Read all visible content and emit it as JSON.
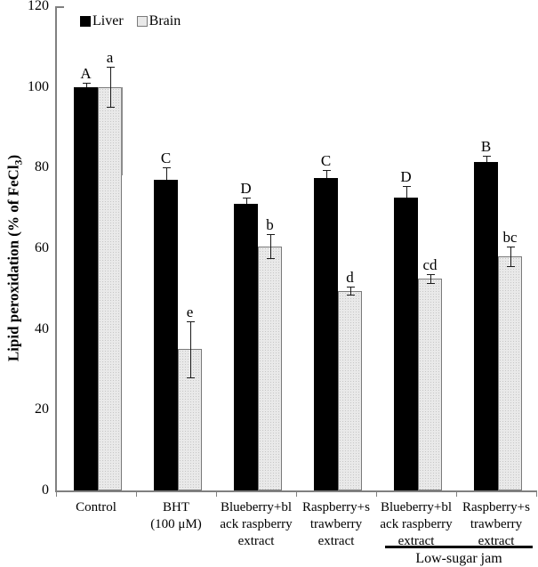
{
  "figure": {
    "kind": "grouped-bar-chart",
    "background": "#ffffff"
  },
  "legend": {
    "items": [
      {
        "label": "Liver",
        "color": "#000000"
      },
      {
        "label": "Brain",
        "color": "#e9e9e9",
        "border": "#7a7a7a"
      }
    ]
  },
  "y_axis": {
    "title_prefix": "Lipid peroxidation (% of FeCl",
    "title_sub": "3",
    "title_suffix": ")",
    "ticks": [
      120,
      100,
      80,
      60,
      40,
      20,
      0
    ]
  },
  "annotation": {
    "label": "Low-sugar jam"
  },
  "colors": {
    "axis": "#808080",
    "liver": "#000000",
    "brain_fill": "#e9e9e9",
    "brain_border": "#7a7a7a"
  },
  "chart_data": {
    "type": "bar",
    "title": "",
    "xlabel": "",
    "ylabel": "Lipid peroxidation (% of FeCl3)",
    "ylim": [
      0,
      120
    ],
    "yticks": [
      0,
      20,
      40,
      60,
      80,
      100,
      120
    ],
    "grid": false,
    "legend_position": "top-inside-left",
    "categories": [
      [
        "Control"
      ],
      [
        "BHT",
        "(100 μM)"
      ],
      [
        "Blueberry+bl",
        "ack raspberry",
        "extract"
      ],
      [
        "Raspberry+s",
        "trawberry",
        "extract"
      ],
      [
        "Blueberry+bl",
        "ack raspberry",
        "extract"
      ],
      [
        "Raspberry+s",
        "trawberry",
        "extract"
      ]
    ],
    "series": [
      {
        "name": "Liver",
        "values": [
          100,
          77,
          71,
          77.5,
          72.5,
          81.5
        ],
        "errors": [
          1,
          3,
          1.5,
          2,
          3,
          1.5
        ],
        "letters": [
          "A",
          "C",
          "D",
          "C",
          "D",
          "B"
        ]
      },
      {
        "name": "Brain",
        "values": [
          100,
          35,
          60.5,
          49.5,
          52.5,
          58
        ],
        "errors": [
          5,
          7,
          3,
          1,
          1,
          2.5
        ],
        "letters": [
          "a",
          "e",
          "b",
          "d",
          "cd",
          "bc"
        ]
      }
    ],
    "group_annotation": {
      "label": "Low-sugar jam",
      "category_indices": [
        4,
        5
      ]
    },
    "control_brain_edge_drop_to": 78
  }
}
